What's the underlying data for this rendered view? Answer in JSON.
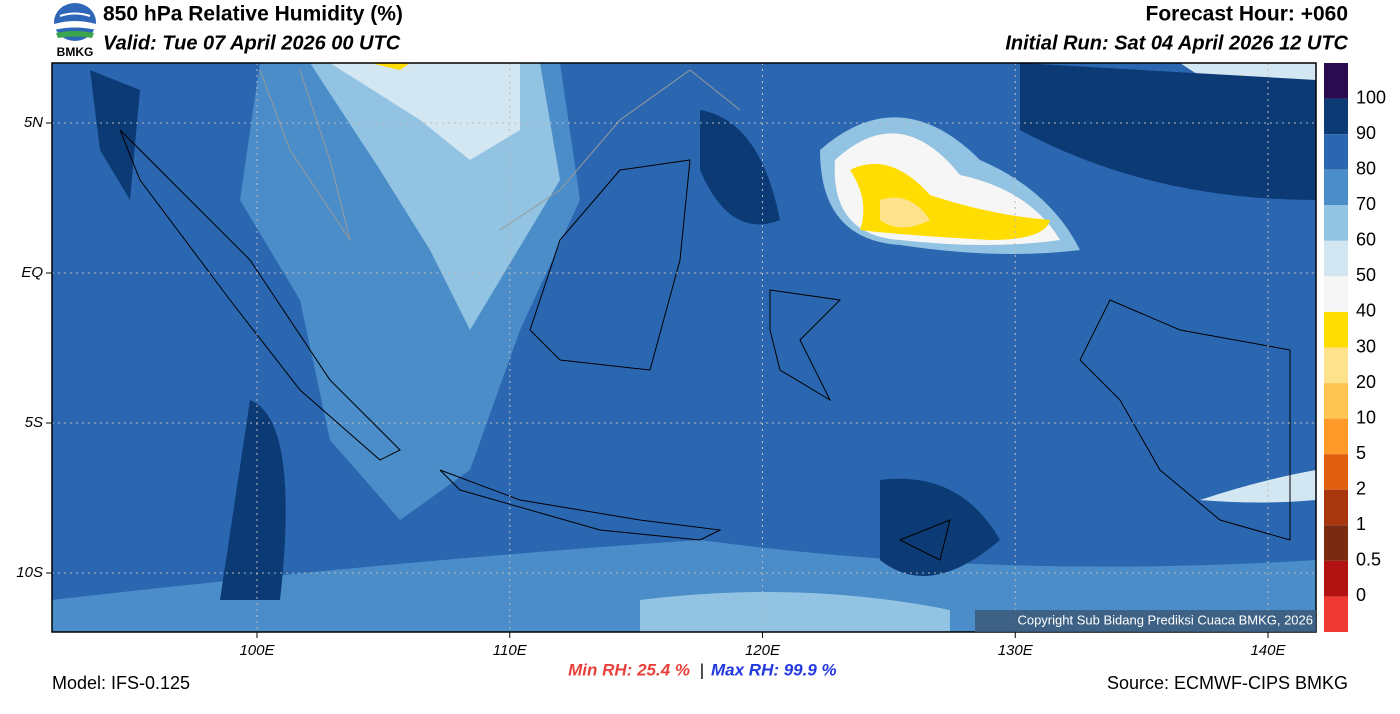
{
  "header": {
    "logo": "BMKG",
    "title": "850 hPa Relative Humidity (%)",
    "valid": "Valid: Tue 07 April 2026 00 UTC",
    "forecast_hour": "Forecast Hour: +060",
    "initial_run": "Initial Run: Sat 04 April 2026 12 UTC"
  },
  "map": {
    "lat_labels": [
      "5N",
      "EQ",
      "5S",
      "10S"
    ],
    "lon_labels": [
      "100E",
      "110E",
      "120E",
      "130E",
      "140E"
    ],
    "copyright": "Copyright Sub Bidang Prediksi Cuaca BMKG, 2026"
  },
  "colorbar": {
    "levels": [
      100,
      90,
      80,
      70,
      60,
      50,
      40,
      30,
      20,
      10,
      5,
      2,
      1,
      0.5,
      0
    ],
    "colors": [
      "#2b0b4f",
      "#0b3a75",
      "#2b67b1",
      "#4a8dc9",
      "#92c3e2",
      "#d3e7f3",
      "#f6f6f6",
      "#ffdd00",
      "#ffe38c",
      "#ffc552",
      "#ff9a2a",
      "#e0600f",
      "#a9370e",
      "#7a2a10",
      "#b31212",
      "#ee3a33"
    ]
  },
  "footer": {
    "model": "Model: IFS-0.125",
    "min_rh": "Min RH:  25.4 %",
    "separator": "|",
    "max_rh": "Max RH:  99.9 %",
    "source": "Source: ECMWF-CIPS BMKG"
  }
}
